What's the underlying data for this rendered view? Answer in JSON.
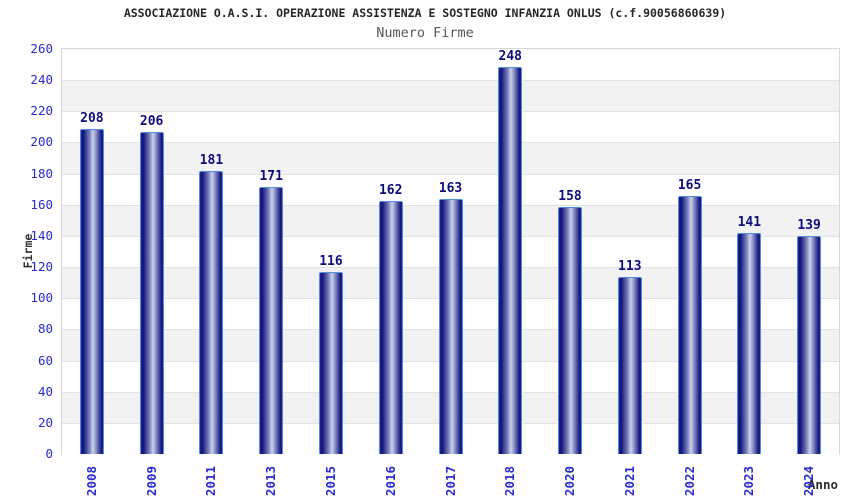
{
  "header": {
    "title": "ASSOCIAZIONE O.A.S.I. OPERAZIONE ASSISTENZA E SOSTEGNO INFANZIA ONLUS (c.f.90056860639)",
    "subtitle": "Numero Firme"
  },
  "chart_data": {
    "type": "bar",
    "title": "Numero Firme",
    "xlabel": "Anno",
    "ylabel": "Firme",
    "categories": [
      "2008",
      "2009",
      "2011",
      "2013",
      "2015",
      "2016",
      "2017",
      "2018",
      "2020",
      "2021",
      "2022",
      "2023",
      "2024"
    ],
    "values": [
      208,
      206,
      181,
      171,
      116,
      162,
      163,
      248,
      158,
      113,
      165,
      141,
      139
    ],
    "ylim": [
      0,
      260
    ],
    "ytick_step": 20,
    "grid": "horizontal-gridlines-with-alternating-bands",
    "legend_position": "none",
    "bar_labels_shown": true,
    "x_tick_rotation_degrees": 90
  },
  "colors": {
    "background": "#ffffff",
    "title_text": "#262626",
    "subtitle_text": "#595959",
    "axis_tick_text": "#2a2ad4",
    "bar_value_text": "#0d0d7e",
    "axis_title_text": "#333333",
    "plot_border": "#d8d8d8",
    "gridline": "#e2e2e2",
    "band_gray": "#f2f2f2",
    "band_white": "#ffffff",
    "bar_border": "#4f8ce0",
    "bar_dark": "#12127a",
    "bar_light": "#c9d1ec"
  }
}
